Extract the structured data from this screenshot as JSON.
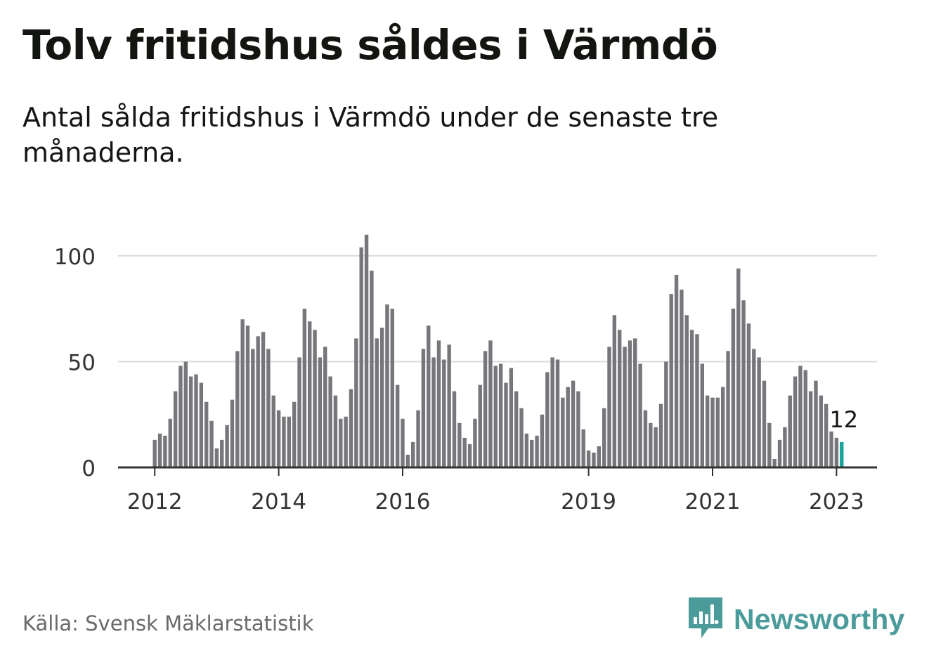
{
  "title": "Tolv fritidshus såldes i Värmdö",
  "subtitle": "Antal sålda fritidshus i Värmdö under de senaste tre månaderna.",
  "source": "Källa: Svensk Mäklarstatistik",
  "brand": {
    "name": "Newsworthy",
    "icon": "newsworthy-logo-icon",
    "color": "#4a9b9a"
  },
  "colors": {
    "bar": "#77767a",
    "highlight": "#1aa39a",
    "grid": "#dcdcdc",
    "axis": "#333333"
  },
  "chart_data": {
    "type": "bar",
    "title": "",
    "xlabel": "",
    "ylabel": "",
    "ylim": [
      0,
      110
    ],
    "grid": true,
    "yticks": [
      "0",
      "50",
      "100"
    ],
    "xticks": [
      "2012",
      "2014",
      "2016",
      "2019",
      "2021",
      "2023"
    ],
    "highlight_label": "12",
    "series": [
      {
        "values": [
          13,
          16,
          15,
          23,
          36,
          48,
          50,
          43,
          44,
          40,
          31,
          22,
          9,
          13,
          20,
          32,
          55,
          70,
          67,
          56,
          62,
          64,
          56,
          34,
          27,
          24,
          24,
          31,
          52,
          75,
          69,
          65,
          52,
          57,
          43,
          34,
          23,
          24,
          37,
          61,
          104,
          110,
          93,
          61,
          66,
          77,
          75,
          39,
          23,
          6,
          12,
          27,
          56,
          67,
          52,
          60,
          51,
          58,
          36,
          21,
          14,
          11,
          23,
          39,
          55,
          60,
          48,
          49,
          40,
          47,
          36,
          28,
          16,
          13,
          15,
          25,
          45,
          52,
          51,
          33,
          38,
          41,
          36,
          18,
          8,
          7,
          10,
          28,
          57,
          72,
          65,
          57,
          60,
          61,
          49,
          27,
          21,
          19,
          30,
          50,
          82,
          91,
          84,
          72,
          65,
          63,
          49,
          34,
          33,
          33,
          38,
          55,
          75,
          94,
          79,
          68,
          56,
          52,
          41,
          21,
          4,
          13,
          19,
          34,
          43,
          48,
          46,
          36,
          41,
          34,
          30,
          17,
          14,
          12
        ]
      }
    ]
  }
}
